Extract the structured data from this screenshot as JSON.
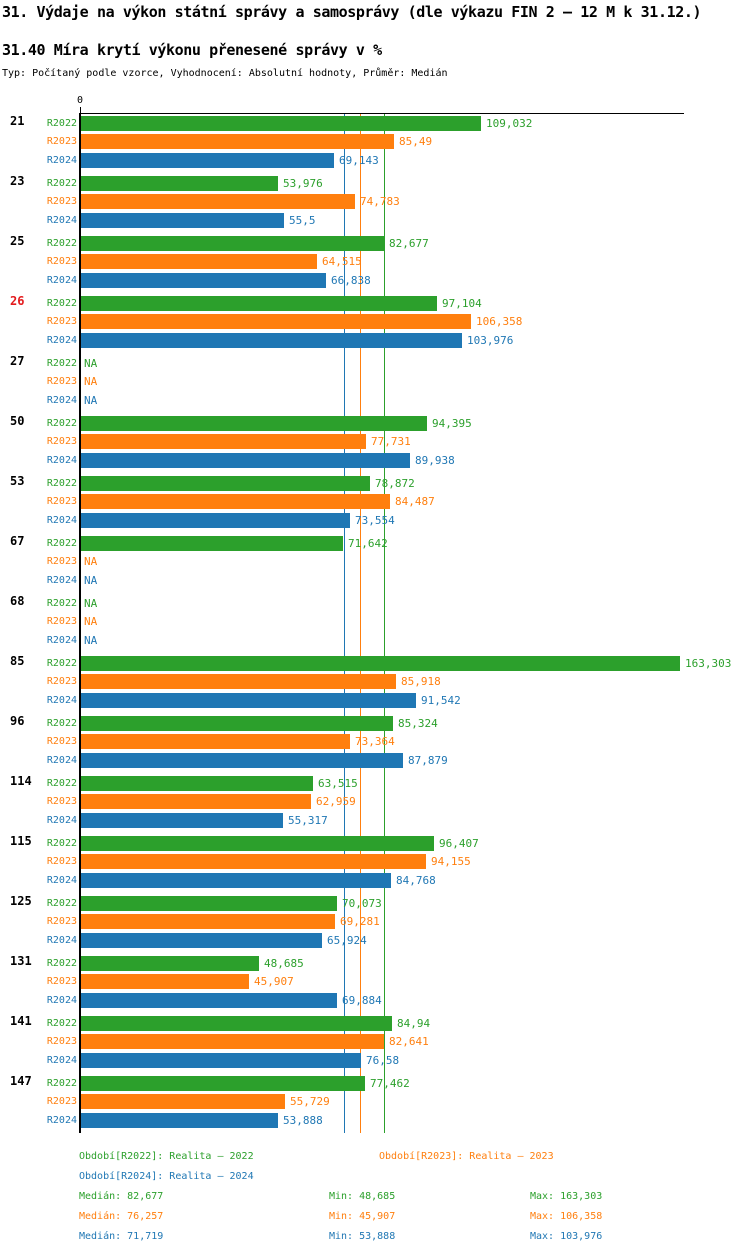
{
  "title": "31. Výdaje na výkon státní správy a samosprávy (dle výkazu FIN 2 – 12 M k 31.12.)",
  "subtitle": "31.40 Míra krytí výkonu přenesené správy v %",
  "meta_line": "Typ: Počítaný podle vzorce, Vyhodnocení: Absolutní hodnoty, Průměr: Medián",
  "axis": {
    "zero_label": "0"
  },
  "colors": {
    "R2022": "#2ca02c",
    "R2023": "#ff7f0e",
    "R2024": "#1f77b4",
    "highlight_group": "#e31a1c",
    "axis": "#000000"
  },
  "chart_data": {
    "type": "bar",
    "orientation": "horizontal",
    "unit": "%",
    "value_axis_min": 0,
    "value_axis_max": 163.303,
    "grid": false,
    "series_labels": [
      "R2022",
      "R2023",
      "R2024"
    ],
    "medians": [
      {
        "series": "R2024",
        "value": 71.719
      },
      {
        "series": "R2023",
        "value": 76.257
      },
      {
        "series": "R2022",
        "value": 82.677
      }
    ],
    "groups": [
      {
        "id": "21",
        "highlighted": false,
        "values": [
          {
            "series": "R2022",
            "label": "109,032",
            "value": 109.032
          },
          {
            "series": "R2023",
            "label": "85,49",
            "value": 85.49
          },
          {
            "series": "R2024",
            "label": "69,143",
            "value": 69.143
          }
        ]
      },
      {
        "id": "23",
        "highlighted": false,
        "values": [
          {
            "series": "R2022",
            "label": "53,976",
            "value": 53.976
          },
          {
            "series": "R2023",
            "label": "74,783",
            "value": 74.783
          },
          {
            "series": "R2024",
            "label": "55,5",
            "value": 55.5
          }
        ]
      },
      {
        "id": "25",
        "highlighted": false,
        "values": [
          {
            "series": "R2022",
            "label": "82,677",
            "value": 82.677
          },
          {
            "series": "R2023",
            "label": "64,515",
            "value": 64.515
          },
          {
            "series": "R2024",
            "label": "66,838",
            "value": 66.838
          }
        ]
      },
      {
        "id": "26",
        "highlighted": true,
        "values": [
          {
            "series": "R2022",
            "label": "97,104",
            "value": 97.104
          },
          {
            "series": "R2023",
            "label": "106,358",
            "value": 106.358
          },
          {
            "series": "R2024",
            "label": "103,976",
            "value": 103.976
          }
        ]
      },
      {
        "id": "27",
        "highlighted": false,
        "values": [
          {
            "series": "R2022",
            "label": "NA",
            "value": null
          },
          {
            "series": "R2023",
            "label": "NA",
            "value": null
          },
          {
            "series": "R2024",
            "label": "NA",
            "value": null
          }
        ]
      },
      {
        "id": "50",
        "highlighted": false,
        "values": [
          {
            "series": "R2022",
            "label": "94,395",
            "value": 94.395
          },
          {
            "series": "R2023",
            "label": "77,731",
            "value": 77.731
          },
          {
            "series": "R2024",
            "label": "89,938",
            "value": 89.938
          }
        ]
      },
      {
        "id": "53",
        "highlighted": false,
        "values": [
          {
            "series": "R2022",
            "label": "78,872",
            "value": 78.872
          },
          {
            "series": "R2023",
            "label": "84,487",
            "value": 84.487
          },
          {
            "series": "R2024",
            "label": "73,554",
            "value": 73.554
          }
        ]
      },
      {
        "id": "67",
        "highlighted": false,
        "values": [
          {
            "series": "R2022",
            "label": "71,642",
            "value": 71.642
          },
          {
            "series": "R2023",
            "label": "NA",
            "value": null
          },
          {
            "series": "R2024",
            "label": "NA",
            "value": null
          }
        ]
      },
      {
        "id": "68",
        "highlighted": false,
        "values": [
          {
            "series": "R2022",
            "label": "NA",
            "value": null
          },
          {
            "series": "R2023",
            "label": "NA",
            "value": null
          },
          {
            "series": "R2024",
            "label": "NA",
            "value": null
          }
        ]
      },
      {
        "id": "85",
        "highlighted": false,
        "values": [
          {
            "series": "R2022",
            "label": "163,303",
            "value": 163.303
          },
          {
            "series": "R2023",
            "label": "85,918",
            "value": 85.918
          },
          {
            "series": "R2024",
            "label": "91,542",
            "value": 91.542
          }
        ]
      },
      {
        "id": "96",
        "highlighted": false,
        "values": [
          {
            "series": "R2022",
            "label": "85,324",
            "value": 85.324
          },
          {
            "series": "R2023",
            "label": "73,364",
            "value": 73.364
          },
          {
            "series": "R2024",
            "label": "87,879",
            "value": 87.879
          }
        ]
      },
      {
        "id": "114",
        "highlighted": false,
        "values": [
          {
            "series": "R2022",
            "label": "63,515",
            "value": 63.515
          },
          {
            "series": "R2023",
            "label": "62,959",
            "value": 62.959
          },
          {
            "series": "R2024",
            "label": "55,317",
            "value": 55.317
          }
        ]
      },
      {
        "id": "115",
        "highlighted": false,
        "values": [
          {
            "series": "R2022",
            "label": "96,407",
            "value": 96.407
          },
          {
            "series": "R2023",
            "label": "94,155",
            "value": 94.155
          },
          {
            "series": "R2024",
            "label": "84,768",
            "value": 84.768
          }
        ]
      },
      {
        "id": "125",
        "highlighted": false,
        "values": [
          {
            "series": "R2022",
            "label": "70,073",
            "value": 70.073
          },
          {
            "series": "R2023",
            "label": "69,281",
            "value": 69.281
          },
          {
            "series": "R2024",
            "label": "65,924",
            "value": 65.924
          }
        ]
      },
      {
        "id": "131",
        "highlighted": false,
        "values": [
          {
            "series": "R2022",
            "label": "48,685",
            "value": 48.685
          },
          {
            "series": "R2023",
            "label": "45,907",
            "value": 45.907
          },
          {
            "series": "R2024",
            "label": "69,884",
            "value": 69.884
          }
        ]
      },
      {
        "id": "141",
        "highlighted": false,
        "values": [
          {
            "series": "R2022",
            "label": "84,94",
            "value": 84.94
          },
          {
            "series": "R2023",
            "label": "82,641",
            "value": 82.641
          },
          {
            "series": "R2024",
            "label": "76,58",
            "value": 76.58
          }
        ]
      },
      {
        "id": "147",
        "highlighted": false,
        "values": [
          {
            "series": "R2022",
            "label": "77,462",
            "value": 77.462
          },
          {
            "series": "R2023",
            "label": "55,729",
            "value": 55.729
          },
          {
            "series": "R2024",
            "label": "53,888",
            "value": 53.888
          }
        ]
      }
    ]
  },
  "footer": {
    "legend": [
      {
        "series": "R2022",
        "label": "Období[R2022]: Realita – 2022"
      },
      {
        "series": "R2023",
        "label": "Období[R2023]: Realita – 2023"
      },
      {
        "series": "R2024",
        "label": "Období[R2024]: Realita – 2024"
      }
    ],
    "stats": [
      {
        "series": "R2022",
        "median": "Medián: 82,677",
        "min": "Min: 48,685",
        "max": "Max: 163,303"
      },
      {
        "series": "R2023",
        "median": "Medián: 76,257",
        "min": "Min: 45,907",
        "max": "Max: 106,358"
      },
      {
        "series": "R2024",
        "median": "Medián: 71,719",
        "min": "Min: 53,888",
        "max": "Max: 103,976"
      }
    ]
  }
}
